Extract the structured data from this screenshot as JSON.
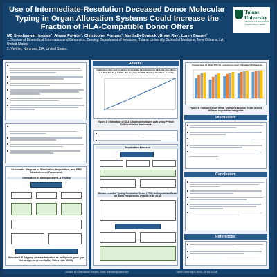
{
  "poster": {
    "title": "Use of Intermediate-Resolution Deceased Donor Molecular Typing in Organ Allocation Systems Could Increase the Fraction of HLA-Compatible Donor Offers",
    "authors": "MD Shakhaowat Hossain¹, Alyssa Paynter¹, Christopher Frangus², MarthaDeConinck², Bryan Ray², Loren Gragert¹",
    "affiliation1": "1.Division of Biomedical Informatics and Genomics, Deming Department of Medicine, Tulane University School of Medicine, New Orleans, LA, United States.",
    "affiliation2": "2. Verifier, Norcross, GA, United States.",
    "logo_line1": "Tulane",
    "logo_line2": "University",
    "logo_line3": "SCHOOL OF MEDICINE",
    "logo_line4": "Tulane Cancer Center"
  },
  "sections": {
    "results": "Results:",
    "discussion": "Discussion:",
    "conclusion": "Conclusion:",
    "references": "References:",
    "schematic": "Schematic Diagram of Simulation, Imputation, and FRS Measurement Framework",
    "simulation": "Simulation of Ambiguous HLA Typing",
    "imputation": "Imputation Process",
    "measurement": "Measurement of Typing Resolution Score (TRS) for Imputation Based on Allele Frequencies (Paunic et al. 2016)"
  },
  "figures": {
    "fig1": "Figure 1: Estimation of DSA 1-tepitope/epitopes data using Python Scikit validation framework",
    "fig3": "Figure 3: Comparison of mean Typing Resolution Score across different imputation categories",
    "fig2_caption": "Simulated HLA typing data are formatted as ambiguous geno-type list strings, as presented by Milius et al. (2013).",
    "chart_title_left": "Calibration Plot and Predictive Probability Distribution for HLA-A Locus (Bins: 0-0.002, Bin Avg: 0.0001, Bin Avg Exp: 0.0000, Bin Avg Obs Bins: 0-0.002)",
    "chart_title_right": "Comparison of Mean TRS by Loci Across Four Imputation Categories"
  },
  "footer": {
    "left": "Contact: MD Shakhaowat Hossain, Email: mhossain@tulane.edu",
    "right": "Tulane University SCHOOL OF MEDICINE"
  },
  "chart_data": [
    {
      "type": "line",
      "title": "Calibration Plot and Predictive Probability Distribution for HLA-A Locus",
      "xlabel": "",
      "ylabel": "",
      "x": [
        0.0,
        0.2,
        0.4,
        0.6,
        0.8,
        1.0
      ],
      "series": [
        {
          "name": "",
          "values": [
            0.0,
            0.18,
            0.37,
            0.58,
            0.78,
            1.0
          ]
        }
      ],
      "xlim": [
        0,
        1
      ],
      "ylim": [
        0,
        1
      ],
      "grid": false
    },
    {
      "type": "bar",
      "title": "Comparison of Mean TRS by Loci Across Four Imputation Categories",
      "categories": [
        "A",
        "B",
        "C",
        "DRB1",
        "DQB1"
      ],
      "series": [
        {
          "name": "",
          "values": [
            0.72,
            0.66,
            0.78,
            0.88,
            0.93
          ]
        },
        {
          "name": "",
          "values": [
            0.82,
            0.76,
            0.86,
            0.93,
            0.96
          ]
        },
        {
          "name": "",
          "values": [
            0.88,
            0.84,
            0.9,
            0.95,
            0.97
          ]
        },
        {
          "name": "",
          "values": [
            0.91,
            0.88,
            0.93,
            0.97,
            0.98
          ]
        }
      ],
      "ylim": [
        0,
        1
      ],
      "grid": false,
      "colors": [
        "#5b9bd5",
        "#ed7d31",
        "#a5a5a5",
        "#ffc000"
      ]
    }
  ]
}
